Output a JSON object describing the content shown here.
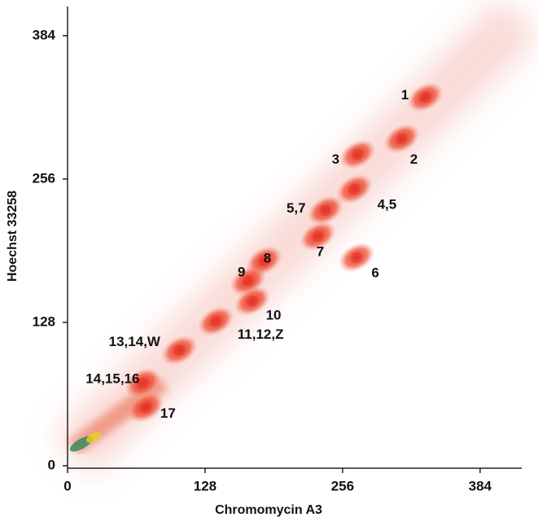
{
  "chart_data": {
    "type": "scatter",
    "x_label": "Chromomycin A3",
    "y_label": "Hoechst 33258",
    "xlim": [
      0,
      422
    ],
    "ylim": [
      0,
      410
    ],
    "xticks": [
      0,
      128,
      256,
      384
    ],
    "yticks": [
      0,
      128,
      256,
      384
    ],
    "color": "#e8392a",
    "points": [
      {
        "label": "1",
        "x": 333,
        "y": 329
      },
      {
        "label": "2",
        "x": 311,
        "y": 292
      },
      {
        "label": "3",
        "x": 270,
        "y": 278
      },
      {
        "label": "4,5",
        "x": 267,
        "y": 247
      },
      {
        "label": "5,7",
        "x": 240,
        "y": 228
      },
      {
        "label": "7",
        "x": 233,
        "y": 205
      },
      {
        "label": "6",
        "x": 269,
        "y": 186
      },
      {
        "label": "8",
        "x": 183,
        "y": 183
      },
      {
        "label": "9",
        "x": 168,
        "y": 165
      },
      {
        "label": "10",
        "x": 172,
        "y": 147
      },
      {
        "label": "11,12,Z",
        "x": 138,
        "y": 129
      },
      {
        "label": "13,14,W",
        "x": 104,
        "y": 103
      },
      {
        "label": "14,15,16",
        "x": 70,
        "y": 74
      },
      {
        "label": "17",
        "x": 73,
        "y": 52
      }
    ]
  }
}
